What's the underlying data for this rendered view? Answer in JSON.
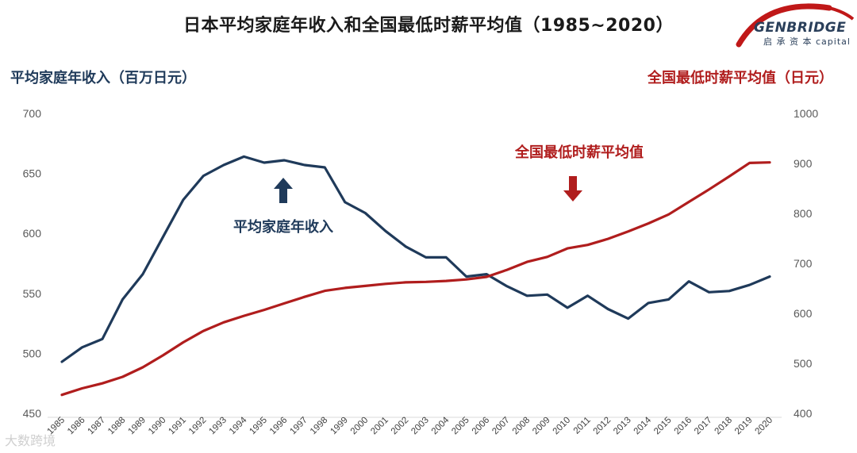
{
  "title": "日本平均家庭年收入和全国最低时薪平均值（1985~2020）",
  "logo": {
    "name": "GENBRIDGE",
    "subtitle": "启 承 资 本 capital"
  },
  "watermark": "大数跨境",
  "colors": {
    "income": "#1f3a5a",
    "wage": "#b01d1d"
  },
  "chart_data": {
    "type": "line",
    "x_axis": {
      "categories": [
        "1985",
        "1986",
        "1987",
        "1988",
        "1989",
        "1990",
        "1991",
        "1992",
        "1993",
        "1994",
        "1995",
        "1996",
        "1997",
        "1998",
        "1999",
        "2000",
        "2001",
        "2002",
        "2003",
        "2004",
        "2005",
        "2006",
        "2007",
        "2008",
        "2009",
        "2010",
        "2011",
        "2012",
        "2013",
        "2014",
        "2015",
        "2016",
        "2017",
        "2018",
        "2019",
        "2020"
      ]
    },
    "y_left": {
      "label": "平均家庭年收入（百万日元）",
      "range": [
        450,
        700
      ],
      "ticks": [
        450,
        500,
        550,
        600,
        650,
        700
      ]
    },
    "y_right": {
      "label": "全国最低时薪平均值（日元）",
      "range": [
        400,
        1000
      ],
      "ticks": [
        400,
        500,
        600,
        700,
        800,
        900,
        1000
      ]
    },
    "grid": false,
    "series": [
      {
        "name": "平均家庭年收入",
        "axis": "left",
        "color": "#1f3a5a",
        "values": [
          493,
          505,
          512,
          545,
          566,
          597,
          628,
          648,
          657,
          664,
          659,
          661,
          657,
          655,
          626,
          617,
          602,
          589,
          580,
          580,
          564,
          566,
          556,
          548,
          549,
          538,
          548,
          537,
          529,
          542,
          545,
          560,
          551,
          552,
          557,
          564
        ]
      },
      {
        "name": "全国最低时薪平均值",
        "axis": "right",
        "color": "#b01d1d",
        "values": [
          437,
          450,
          460,
          473,
          492,
          516,
          542,
          565,
          582,
          595,
          607,
          620,
          633,
          645,
          651,
          655,
          659,
          662,
          663,
          665,
          668,
          673,
          687,
          703,
          713,
          730,
          737,
          749,
          764,
          780,
          798,
          823,
          848,
          874,
          901,
          902
        ]
      }
    ],
    "annotations": [
      {
        "text": "平均家庭年收入",
        "series": "平均家庭年收入",
        "arrow": "up"
      },
      {
        "text": "全国最低时薪平均值",
        "series": "全国最低时薪平均值",
        "arrow": "down"
      }
    ]
  }
}
